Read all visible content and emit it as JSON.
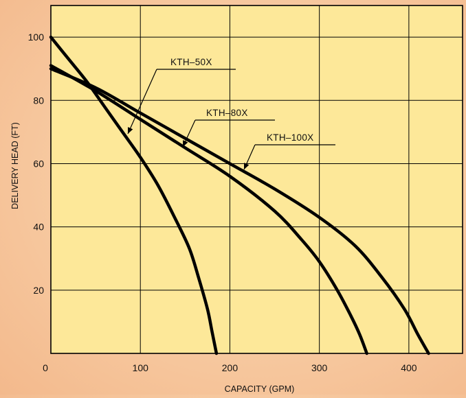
{
  "chart_data": {
    "type": "line",
    "title": "",
    "xlabel": "CAPACITY (GPM)",
    "ylabel": "DELIVERY HEAD (FT)",
    "xlim": [
      0,
      460
    ],
    "ylim": [
      0,
      110
    ],
    "x_ticks": [
      0,
      100,
      200,
      300,
      400
    ],
    "y_ticks": [
      20,
      40,
      60,
      80,
      100
    ],
    "grid": true,
    "legend": "labels on curves with leader lines",
    "colors": {
      "plot_background": "#fde899",
      "grid": "#000000",
      "line": "#000000"
    },
    "series": [
      {
        "name": "KTH–50X",
        "x": [
          0,
          20,
          40,
          60,
          80,
          100,
          120,
          140,
          155,
          165,
          175,
          180,
          185
        ],
        "y": [
          100,
          93,
          86,
          78,
          70,
          62,
          53,
          42,
          33,
          24,
          14,
          7,
          0
        ]
      },
      {
        "name": "KTH–80X",
        "x": [
          0,
          50,
          100,
          150,
          200,
          250,
          280,
          300,
          320,
          335,
          345,
          353
        ],
        "y": [
          91,
          83,
          74,
          65,
          56,
          45,
          36,
          29,
          20,
          12,
          6,
          0
        ]
      },
      {
        "name": "KTH–100X",
        "x": [
          0,
          50,
          100,
          150,
          200,
          250,
          300,
          340,
          370,
          395,
          410,
          422
        ],
        "y": [
          90,
          84,
          76,
          68,
          60,
          52,
          43,
          34,
          24,
          14,
          6,
          0
        ]
      }
    ]
  }
}
